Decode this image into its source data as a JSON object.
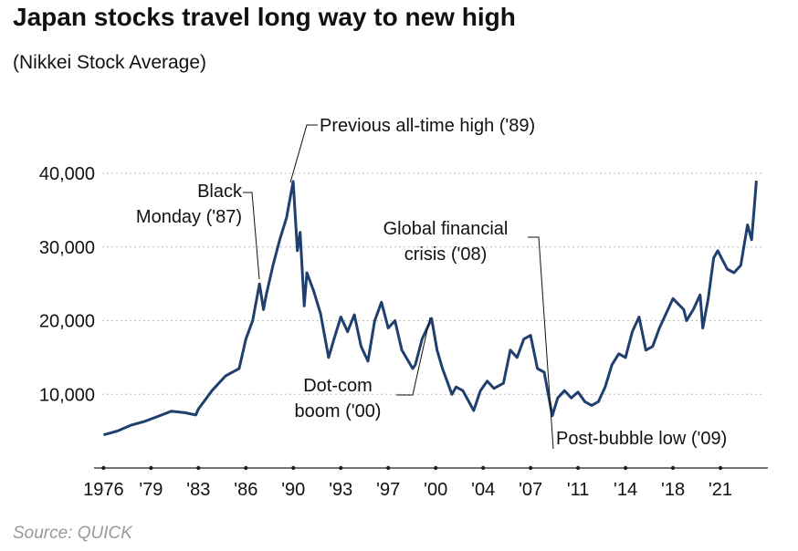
{
  "chart_data": {
    "type": "line",
    "title": "Japan stocks travel long way to new high",
    "subtitle": "(Nikkei Stock Average)",
    "source": "Source: QUICK",
    "color": "#1f3f6e",
    "x": [
      1976,
      1977,
      1978,
      1979,
      1980,
      1981,
      1982,
      1982.8,
      1983,
      1984,
      1985,
      1986,
      1986.5,
      1987,
      1987.5,
      1987.8,
      1988,
      1988.5,
      1989,
      1989.5,
      1989.99,
      1990.3,
      1990.5,
      1990.8,
      1991,
      1991.5,
      1992,
      1992.6,
      1993,
      1993.5,
      1994,
      1994.5,
      1995,
      1995.5,
      1996,
      1996.5,
      1997,
      1997.5,
      1998,
      1998.8,
      1999,
      1999.5,
      2000.2,
      2000.6,
      2001,
      2001.7,
      2002,
      2002.5,
      2003.3,
      2003.8,
      2004.3,
      2004.8,
      2005.5,
      2006,
      2006.5,
      2007,
      2007.5,
      2008,
      2008.5,
      2009.1,
      2009.5,
      2010,
      2010.5,
      2011,
      2011.5,
      2012,
      2012.5,
      2013,
      2013.5,
      2014,
      2014.5,
      2015,
      2015.5,
      2016,
      2016.5,
      2017,
      2018,
      2018.8,
      2019,
      2019.5,
      2020,
      2020.2,
      2020.6,
      2021,
      2021.3,
      2022,
      2022.5,
      2023,
      2023.5,
      2023.8,
      2024,
      2024.15
    ],
    "values": [
      4500,
      5000,
      5800,
      6300,
      7000,
      7700,
      7500,
      7200,
      8000,
      10500,
      12500,
      13500,
      17500,
      20000,
      25000,
      21500,
      23500,
      27500,
      31000,
      34000,
      38900,
      29500,
      32000,
      22000,
      26500,
      24000,
      21000,
      15000,
      17500,
      20500,
      18500,
      20800,
      16500,
      14500,
      20000,
      22500,
      19000,
      20000,
      16000,
      13500,
      14000,
      17500,
      20300,
      16000,
      13500,
      10000,
      11000,
      10500,
      7800,
      10500,
      11800,
      10800,
      11500,
      16000,
      15000,
      17500,
      18000,
      13500,
      13000,
      7100,
      9500,
      10500,
      9500,
      10300,
      9000,
      8500,
      9000,
      11000,
      14000,
      15500,
      15000,
      18500,
      20500,
      16000,
      16500,
      19000,
      23000,
      21500,
      20000,
      21500,
      23500,
      19000,
      23000,
      28500,
      29500,
      27000,
      26500,
      27500,
      33000,
      31000,
      35500,
      39000
    ],
    "xlim": [
      1975.3,
      2025.0
    ],
    "ylim": [
      0,
      40000
    ],
    "xticks": [
      1976,
      {
        "value": 1979.5,
        "label": "'79"
      },
      {
        "value": 1983,
        "label": "'83"
      },
      {
        "value": 1986.5,
        "label": "'86"
      },
      {
        "value": 1990,
        "label": "'90"
      },
      {
        "value": 1993.5,
        "label": "'93"
      },
      {
        "value": 1997,
        "label": "'97"
      },
      {
        "value": 2000.5,
        "label": "'00"
      },
      {
        "value": 2004,
        "label": "'04"
      },
      {
        "value": 2007.5,
        "label": "'07"
      },
      {
        "value": 2011,
        "label": "'11"
      },
      {
        "value": 2014.5,
        "label": "'14"
      },
      {
        "value": 2018,
        "label": "'18"
      },
      {
        "value": 2021.5,
        "label": "'21"
      }
    ],
    "yticks": [
      {
        "value": 10000,
        "label": "10,000"
      },
      {
        "value": 20000,
        "label": "20,000"
      },
      {
        "value": 30000,
        "label": "30,000"
      },
      {
        "value": 40000,
        "label": "40,000"
      }
    ],
    "grid": true,
    "annotations": [
      {
        "lines": [
          "Previous all-time high ('89)"
        ]
      },
      {
        "lines": [
          "Black",
          "Monday ('87)"
        ]
      },
      {
        "lines": [
          "Global financial",
          "crisis ('08)"
        ]
      },
      {
        "lines": [
          "Dot-com",
          "boom ('00)"
        ]
      },
      {
        "lines": [
          "Post-bubble low ('09)"
        ]
      }
    ]
  }
}
